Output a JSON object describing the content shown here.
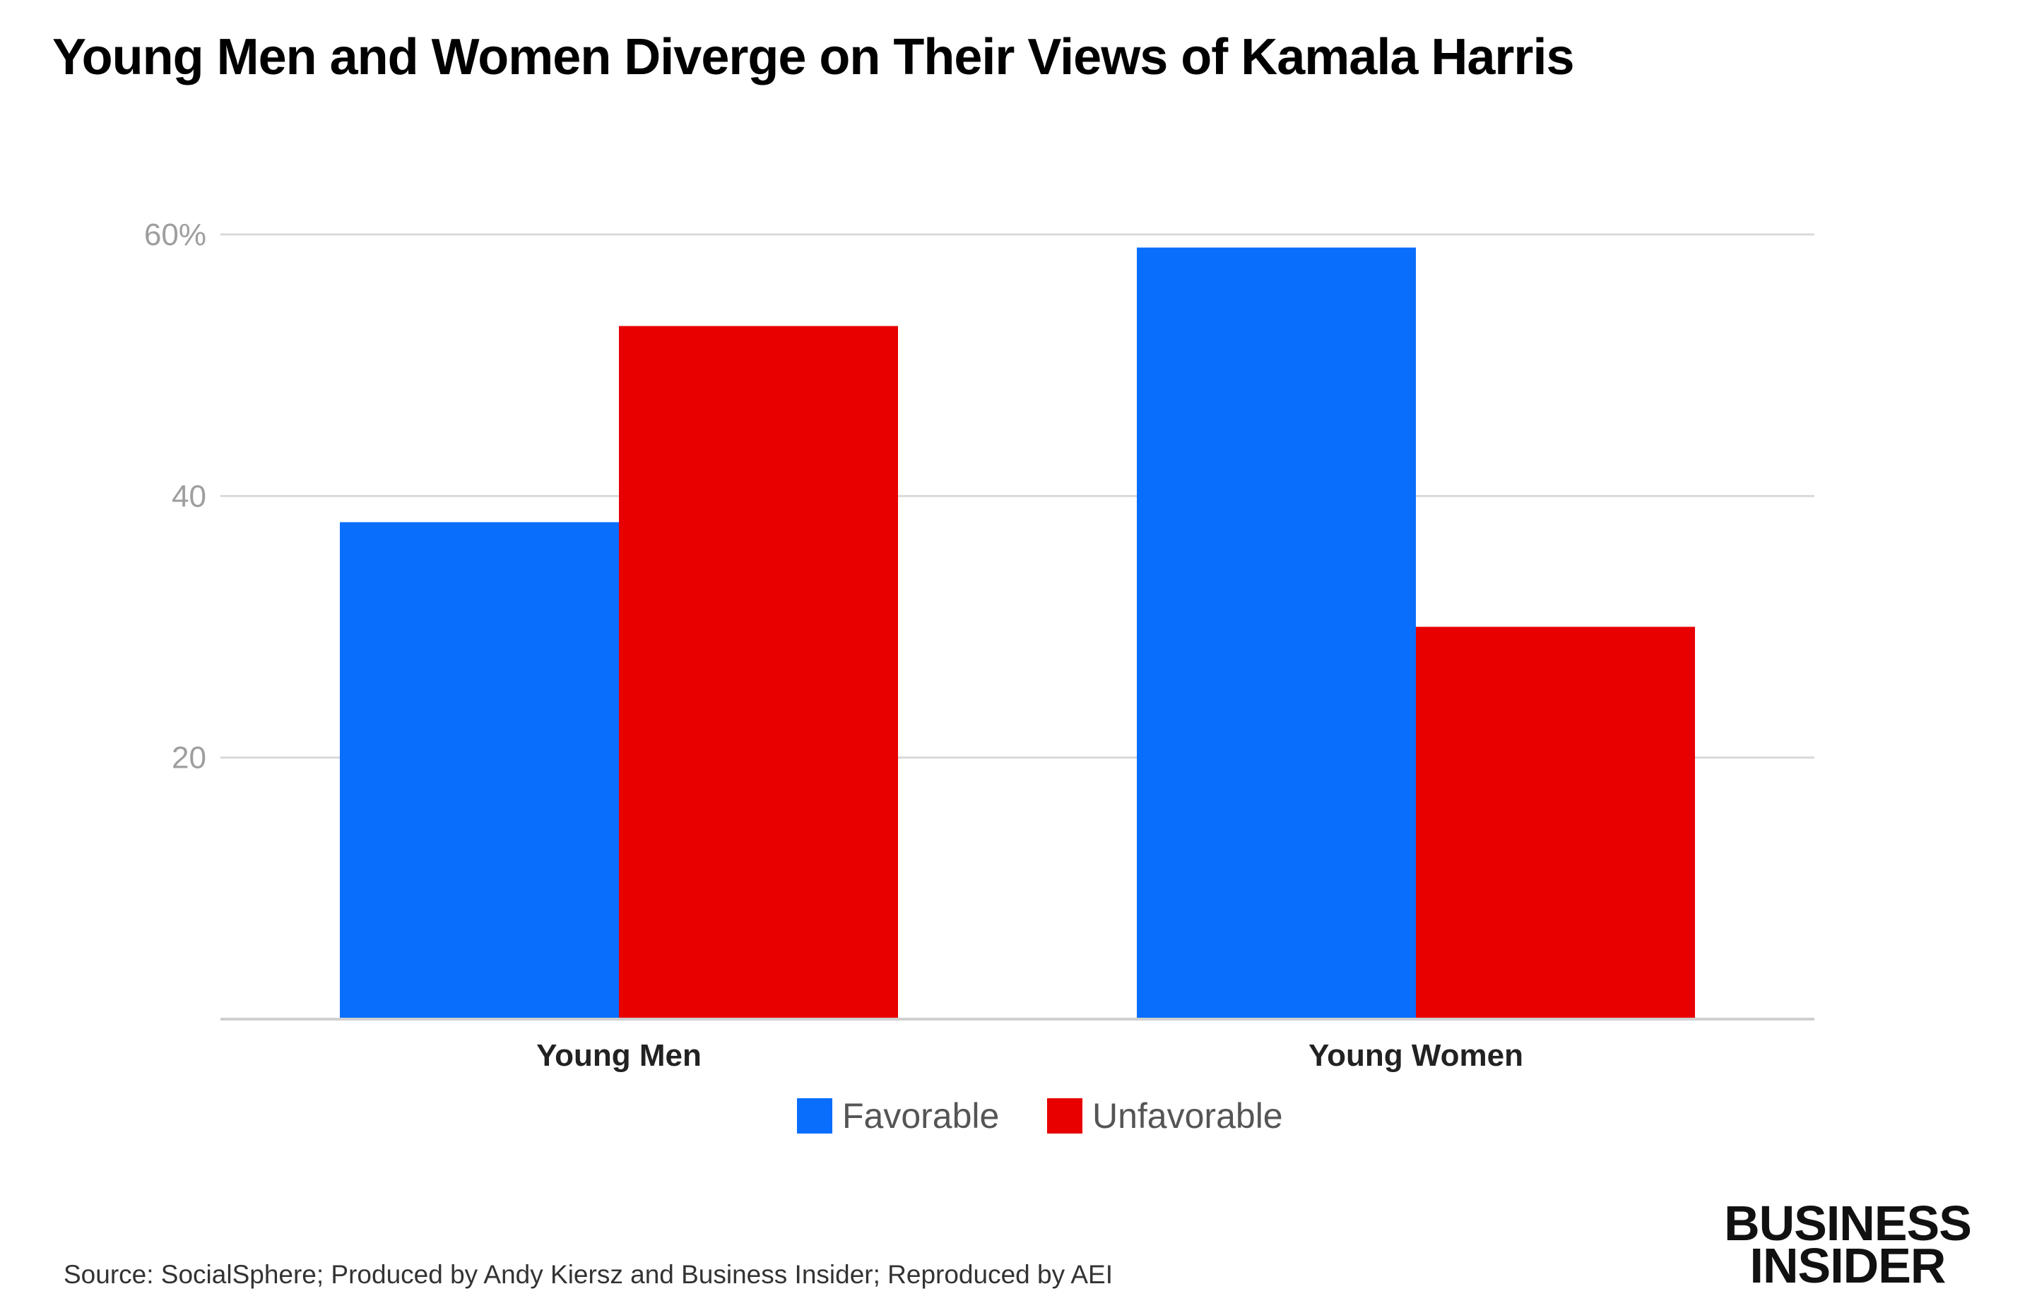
{
  "chart_data": {
    "type": "bar",
    "title": "Young Men and Women Diverge on Their Views of Kamala Harris",
    "categories": [
      "Young Men",
      "Young Women"
    ],
    "series": [
      {
        "name": "Favorable",
        "values": [
          38,
          59
        ],
        "color": "#0A6EFD"
      },
      {
        "name": "Unfavorable",
        "values": [
          53,
          30
        ],
        "color": "#E80000"
      }
    ],
    "ylim": [
      0,
      60
    ],
    "yticks": [
      20,
      40,
      60
    ],
    "ytick_labels": [
      "20",
      "40",
      "60%"
    ],
    "xlabel": "",
    "ylabel": "",
    "grid": true,
    "legend_position": "bottom-center"
  },
  "source": "Source: SocialSphere; Produced by Andy Kiersz and Business Insider; Reproduced by AEI",
  "logo": {
    "line1": "BUSINESS",
    "line2": "INSIDER"
  },
  "colors": {
    "gridline": "#D9D9D9",
    "axis": "#CFCFCF",
    "tick_text": "#9E9E9E",
    "category_text": "#222222",
    "legend_text": "#555555"
  }
}
